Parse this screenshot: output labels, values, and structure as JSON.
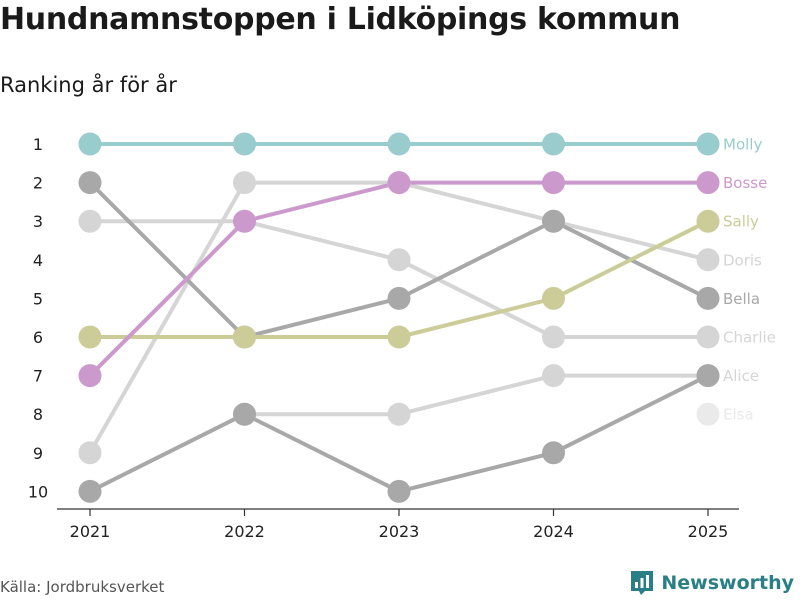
{
  "title": "Hundnamnstoppen i Lidköpings kommun",
  "subtitle": "Ranking år för år",
  "source": "Källa: Jordbruksverket",
  "brand": "Newsworthy",
  "brand_color": "#2a7f86",
  "chart_data": {
    "type": "line",
    "chart_style": "bump",
    "x": [
      "2021",
      "2022",
      "2023",
      "2024",
      "2025"
    ],
    "y_ticks": [
      "1",
      "2",
      "3",
      "4",
      "5",
      "6",
      "7",
      "8",
      "9",
      "10"
    ],
    "ylim": [
      1,
      10
    ],
    "y_inverted": true,
    "series": [
      {
        "name": "Elsa",
        "color": "#eaeaea",
        "ranks": [
          null,
          null,
          null,
          null,
          8
        ]
      },
      {
        "name": "Charlie",
        "color": "#d5d5d5",
        "ranks": [
          3,
          3,
          4,
          6,
          6
        ]
      },
      {
        "name": "Doris",
        "color": "#d5d5d5",
        "ranks": [
          9,
          2,
          2,
          3,
          4
        ]
      },
      {
        "name": "Alice",
        "color": "#d5d5d5",
        "ranks": [
          null,
          8,
          8,
          7,
          7
        ]
      },
      {
        "name": "Bella",
        "color": "#a8a8a8",
        "ranks": [
          2,
          6,
          5,
          3,
          5
        ]
      },
      {
        "name": "Alice",
        "color": "#a8a8a8",
        "ranks": [
          10,
          8,
          10,
          9,
          7
        ]
      },
      {
        "name": "Sally",
        "color": "#cccc99",
        "ranks": [
          6,
          6,
          6,
          5,
          3
        ]
      },
      {
        "name": "Bosse",
        "color": "#cc99cc",
        "ranks": [
          7,
          3,
          2,
          2,
          2
        ]
      },
      {
        "name": "Molly",
        "color": "#99cccc",
        "ranks": [
          1,
          1,
          1,
          1,
          1
        ]
      }
    ]
  }
}
